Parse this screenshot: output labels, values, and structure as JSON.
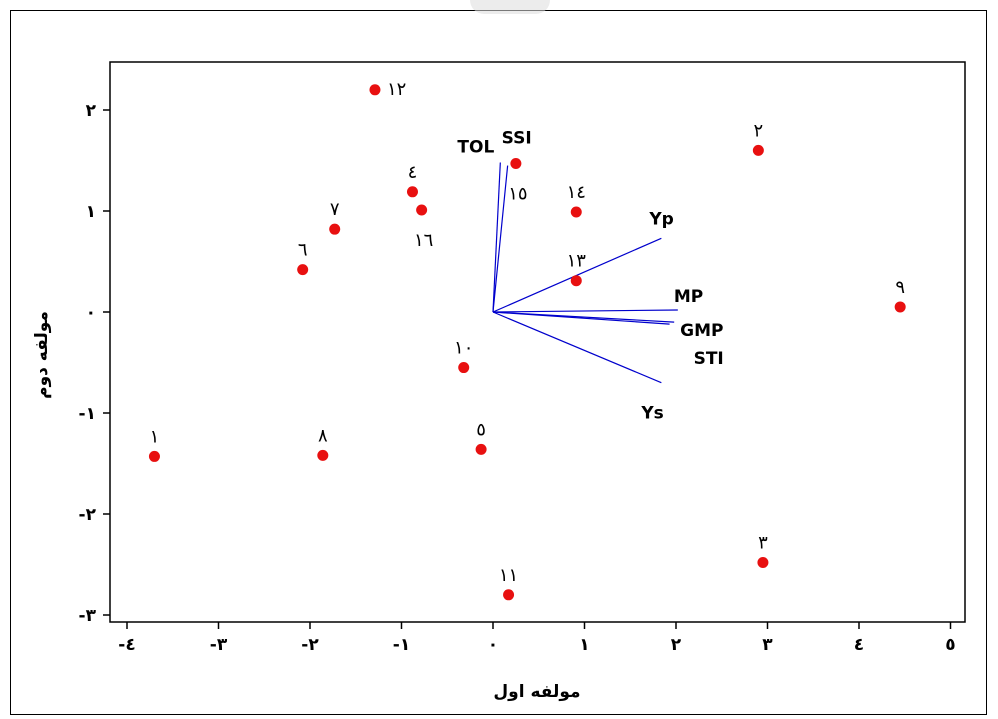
{
  "chart_data": {
    "type": "scatter",
    "title": "",
    "xlabel": "مولفه اول",
    "ylabel": "مولفه دوم",
    "xlim": [
      -4.3,
      5.0
    ],
    "ylim": [
      -3.1,
      2.45
    ],
    "x_ticks": [
      {
        "value": -4,
        "label": "-٤"
      },
      {
        "value": -3,
        "label": "-٣"
      },
      {
        "value": -2,
        "label": "-٢"
      },
      {
        "value": -1,
        "label": "-١"
      },
      {
        "value": 0,
        "label": "٠"
      },
      {
        "value": 1,
        "label": "١"
      },
      {
        "value": 2,
        "label": "٢"
      },
      {
        "value": 3,
        "label": "٣"
      },
      {
        "value": 4,
        "label": "٤"
      },
      {
        "value": 5,
        "label": "٥"
      }
    ],
    "y_ticks": [
      {
        "value": 2,
        "label": "٢"
      },
      {
        "value": 1,
        "label": "١"
      },
      {
        "value": 0,
        "label": "٠"
      },
      {
        "value": -1,
        "label": "-١"
      },
      {
        "value": -2,
        "label": "-٢"
      },
      {
        "value": -3,
        "label": "-٣"
      }
    ],
    "grid": false,
    "points": [
      {
        "label": "١",
        "x": -3.7,
        "y": -1.43,
        "label_side": "above"
      },
      {
        "label": "٢",
        "x": 2.9,
        "y": 1.6,
        "label_side": "above"
      },
      {
        "label": "٣",
        "x": 2.95,
        "y": -2.48,
        "label_side": "above"
      },
      {
        "label": "٤",
        "x": -0.88,
        "y": 1.19,
        "label_side": "above"
      },
      {
        "label": "٥",
        "x": -0.13,
        "y": -1.36,
        "label_side": "above"
      },
      {
        "label": "٦",
        "x": -2.08,
        "y": 0.42,
        "label_side": "above"
      },
      {
        "label": "٧",
        "x": -1.73,
        "y": 0.82,
        "label_side": "above"
      },
      {
        "label": "٨",
        "x": -1.86,
        "y": -1.42,
        "label_side": "above"
      },
      {
        "label": "٩",
        "x": 4.45,
        "y": 0.05,
        "label_side": "above"
      },
      {
        "label": "١٠",
        "x": -0.32,
        "y": -0.55,
        "label_side": "above"
      },
      {
        "label": "١١",
        "x": 0.17,
        "y": -2.8,
        "label_side": "above"
      },
      {
        "label": "١٢",
        "x": -1.29,
        "y": 2.2,
        "label_side": "right"
      },
      {
        "label": "١٣",
        "x": 0.91,
        "y": 0.31,
        "label_side": "above"
      },
      {
        "label": "١٤",
        "x": 0.91,
        "y": 0.99,
        "label_side": "above"
      },
      {
        "label": "١٥",
        "x": 0.25,
        "y": 1.47,
        "label_side": "below"
      },
      {
        "label": "١٦",
        "x": -0.78,
        "y": 1.01,
        "label_side": "below"
      }
    ],
    "vectors": [
      {
        "name": "TOL",
        "x": 0.08,
        "y": 1.48
      },
      {
        "name": "SSI",
        "x": 0.16,
        "y": 1.45
      },
      {
        "name": "Yp",
        "x": 1.84,
        "y": 0.73
      },
      {
        "name": "MP",
        "x": 2.02,
        "y": 0.02
      },
      {
        "name": "GMP",
        "x": 1.98,
        "y": -0.1
      },
      {
        "name": "STI",
        "x": 1.93,
        "y": -0.12
      },
      {
        "name": "Ys",
        "x": 1.84,
        "y": -0.7
      }
    ],
    "point_color": "#e81010",
    "vector_color": "#0000cc"
  }
}
